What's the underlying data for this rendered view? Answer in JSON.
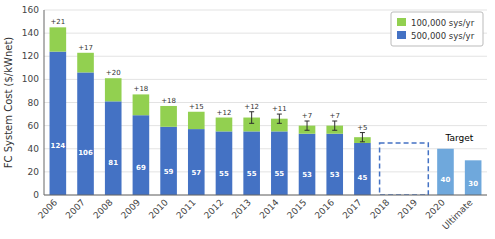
{
  "chart_data": {
    "type": "bar",
    "stacked": true,
    "categories": [
      "2006",
      "2007",
      "2008",
      "2009",
      "2010",
      "2011",
      "2012",
      "2013",
      "2014",
      "2015",
      "2016",
      "2017",
      "2018",
      "2019",
      "2020",
      "Ultimate"
    ],
    "series": [
      {
        "name": "500,000 sys/yr",
        "color": "#4472C4",
        "colors": [
          "#4472C4",
          "#4472C4",
          "#4472C4",
          "#4472C4",
          "#4472C4",
          "#4472C4",
          "#4472C4",
          "#4472C4",
          "#4472C4",
          "#4472C4",
          "#4472C4",
          "#4472C4",
          "#4472C4",
          "#4472C4",
          "#6FA8DC",
          "#6FA8DC"
        ],
        "values": [
          124,
          106,
          81,
          69,
          59,
          57,
          55,
          55,
          55,
          53,
          53,
          45,
          0,
          0,
          40,
          30
        ],
        "value_labels": [
          "124",
          "106",
          "81",
          "69",
          "59",
          "57",
          "55",
          "55",
          "55",
          "53",
          "53",
          "45",
          null,
          null,
          "40",
          "30"
        ]
      },
      {
        "name": "100,000 sys/yr",
        "color": "#92D050",
        "values": [
          21,
          17,
          20,
          18,
          18,
          15,
          12,
          12,
          11,
          7,
          7,
          5,
          0,
          0,
          0,
          0
        ],
        "value_labels": [
          "+21",
          "+17",
          "+20",
          "+18",
          "+18",
          "+15",
          "+12",
          "+12",
          "+11",
          "+7",
          "+7",
          "+5",
          null,
          null,
          null,
          null
        ],
        "errors": [
          null,
          null,
          null,
          null,
          null,
          null,
          null,
          5,
          4,
          4,
          4,
          4,
          null,
          null,
          null,
          null
        ]
      }
    ],
    "ylabel": "FC System Cost ($/kWnet)",
    "ylim": [
      0,
      160
    ],
    "yticks": [
      0,
      20,
      40,
      60,
      80,
      100,
      120,
      140,
      160
    ],
    "grid": true,
    "legend": "upper right",
    "data_labels": true,
    "highlight": {
      "categories": [
        "2018",
        "2019"
      ],
      "height": 45,
      "color": "#4472C4",
      "line_style": "dashed"
    },
    "annotations": [
      {
        "text": "Target",
        "categories": [
          "2020",
          "Ultimate"
        ]
      }
    ]
  }
}
